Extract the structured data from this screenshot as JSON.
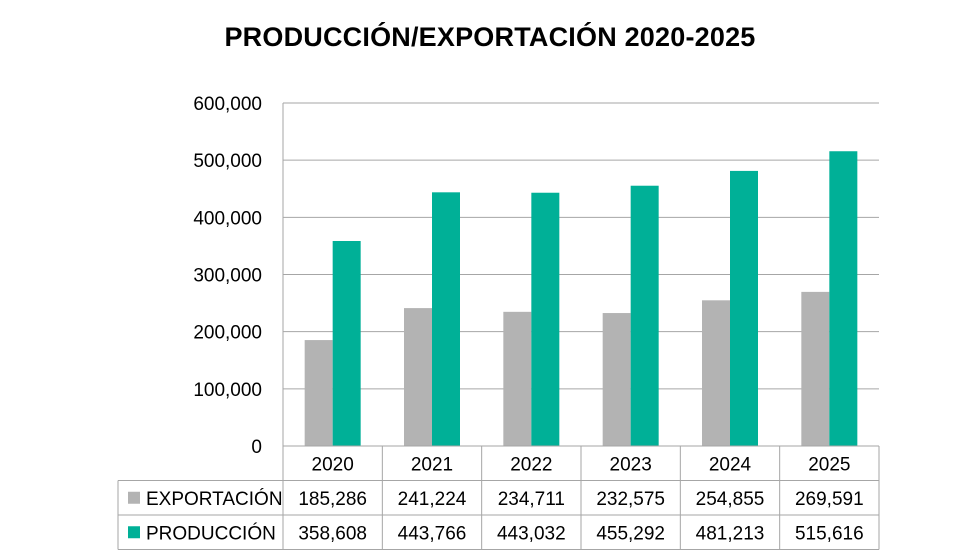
{
  "chart_data": {
    "type": "bar",
    "title": "PRODUCCIÓN/EXPORTACIÓN 2020-2025",
    "categories": [
      "2020",
      "2021",
      "2022",
      "2023",
      "2024",
      "2025"
    ],
    "series": [
      {
        "name": "EXPORTACIÓN",
        "color": "#b3b3b3",
        "values": [
          185286,
          241224,
          234711,
          232575,
          254855,
          269591
        ],
        "labels": [
          "185,286",
          "241,224",
          "234,711",
          "232,575",
          "254,855",
          "269,591"
        ]
      },
      {
        "name": "PRODUCCIÓN",
        "color": "#00b097",
        "values": [
          358608,
          443766,
          443032,
          455292,
          481213,
          515616
        ],
        "labels": [
          "358,608",
          "443,766",
          "443,032",
          "455,292",
          "481,213",
          "515,616"
        ]
      }
    ],
    "ylim": [
      0,
      600000
    ],
    "yticks": [
      0,
      100000,
      200000,
      300000,
      400000,
      500000,
      600000
    ],
    "ytick_labels": [
      "0",
      "100,000",
      "200,000",
      "300,000",
      "400,000",
      "500,000",
      "600,000"
    ],
    "grid": true,
    "data_table": true
  }
}
